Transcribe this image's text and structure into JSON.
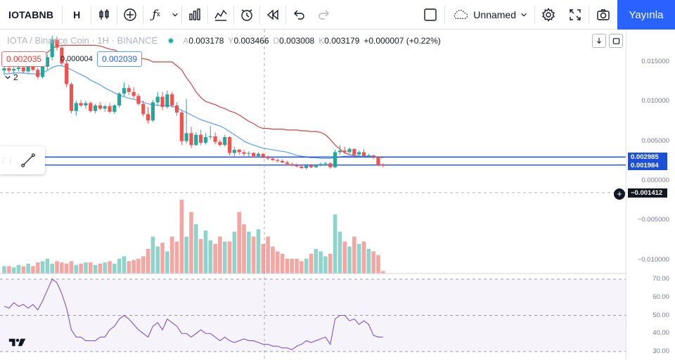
{
  "toolbar": {
    "symbol": "IOTABNB",
    "interval": "H",
    "icons": [
      "candle-chart-icon",
      "add-compare-icon",
      "indicators-icon",
      "chevron-down-icon",
      "templates-icon",
      "line-chart-icon",
      "alert-icon",
      "replay-icon",
      "undo-icon",
      "redo-icon"
    ],
    "layout_name": "Unnamed",
    "publish_label": "Yayınla"
  },
  "legend": {
    "title": "IOTA / Binance Coin · 1H · BINANCE",
    "open_key": "A",
    "open": "0.003178",
    "high_key": "Y",
    "high": "0.003466",
    "low_key": "D",
    "low": "0.003008",
    "close_key": "K",
    "close": "0.003179",
    "change": "+0.000007 (+0.22%)"
  },
  "indicators": {
    "red_value": "0.002035",
    "small_value": "0.000004",
    "blue_value": "0.002039",
    "collapsed_count": "2"
  },
  "price_axis": {
    "ticks": [
      "0.015000",
      "0.010000",
      "0.005000",
      "0.000000",
      "−0.005000",
      "−0.010000"
    ],
    "labels": {
      "blue_upper": "0.002985",
      "blue_lower": "0.001984",
      "crosshair": "−0.001412"
    },
    "rsi_ticks": [
      "70.00",
      "60.00",
      "50.00",
      "40.00",
      "30.00"
    ]
  },
  "colors": {
    "up": "#26a69a",
    "down": "#ef5350",
    "up_vol": "#8fd3cb",
    "down_vol": "#f4a6a3",
    "ma_red": "#c94646",
    "ma_blue": "#5b9cf6",
    "rsi": "#7e57c2",
    "hline": "#1c4fd8"
  },
  "chart_data": {
    "type": "candlestick",
    "title": "IOTA / Binance Coin · 1H · BINANCE",
    "yrange": [
      -0.0125,
      0.018
    ],
    "candles": [
      [
        0.0139,
        0.0147,
        0.0133,
        0.0142
      ],
      [
        0.0142,
        0.0146,
        0.0136,
        0.0139
      ],
      [
        0.0139,
        0.0144,
        0.0134,
        0.0141
      ],
      [
        0.0141,
        0.0147,
        0.0138,
        0.0143
      ],
      [
        0.0143,
        0.0145,
        0.0135,
        0.0138
      ],
      [
        0.0138,
        0.0145,
        0.0136,
        0.0144
      ],
      [
        0.0144,
        0.0148,
        0.0138,
        0.014
      ],
      [
        0.014,
        0.0143,
        0.0128,
        0.0131
      ],
      [
        0.0131,
        0.0147,
        0.0129,
        0.0144
      ],
      [
        0.0144,
        0.016,
        0.014,
        0.0156
      ],
      [
        0.0156,
        0.0183,
        0.0152,
        0.0178
      ],
      [
        0.0178,
        0.0182,
        0.0164,
        0.0168
      ],
      [
        0.0168,
        0.017,
        0.0145,
        0.0148
      ],
      [
        0.0148,
        0.0152,
        0.0118,
        0.0122
      ],
      [
        0.0122,
        0.0124,
        0.0085,
        0.0088
      ],
      [
        0.0088,
        0.0101,
        0.0082,
        0.0098
      ],
      [
        0.0098,
        0.0102,
        0.0093,
        0.0095
      ],
      [
        0.0095,
        0.0101,
        0.0091,
        0.0098
      ],
      [
        0.0098,
        0.01,
        0.0086,
        0.0088
      ],
      [
        0.0088,
        0.0097,
        0.0085,
        0.0095
      ],
      [
        0.0095,
        0.0099,
        0.0089,
        0.0091
      ],
      [
        0.0091,
        0.0096,
        0.0087,
        0.0094
      ],
      [
        0.0094,
        0.0098,
        0.0085,
        0.0087
      ],
      [
        0.0087,
        0.0097,
        0.0084,
        0.0095
      ],
      [
        0.0095,
        0.0112,
        0.0092,
        0.011
      ],
      [
        0.011,
        0.0124,
        0.0106,
        0.0117
      ],
      [
        0.0117,
        0.0121,
        0.0108,
        0.0112
      ],
      [
        0.0112,
        0.0118,
        0.0104,
        0.0107
      ],
      [
        0.0107,
        0.011,
        0.0095,
        0.0097
      ],
      [
        0.0097,
        0.0101,
        0.0081,
        0.0084
      ],
      [
        0.0084,
        0.0093,
        0.0072,
        0.0076
      ],
      [
        0.0076,
        0.0102,
        0.0074,
        0.0099
      ],
      [
        0.0099,
        0.0112,
        0.0095,
        0.0106
      ],
      [
        0.0106,
        0.0112,
        0.0089,
        0.0093
      ],
      [
        0.0093,
        0.0114,
        0.0091,
        0.0109
      ],
      [
        0.0109,
        0.0112,
        0.0092,
        0.0095
      ],
      [
        0.0095,
        0.0099,
        0.0082,
        0.0086
      ],
      [
        0.0086,
        0.0089,
        0.0045,
        0.005
      ],
      [
        0.005,
        0.0103,
        0.0047,
        0.006
      ],
      [
        0.006,
        0.0068,
        0.0041,
        0.0045
      ],
      [
        0.0045,
        0.0061,
        0.0044,
        0.0058
      ],
      [
        0.0058,
        0.0064,
        0.0045,
        0.0048
      ],
      [
        0.0048,
        0.006,
        0.0046,
        0.0055
      ],
      [
        0.0055,
        0.0069,
        0.0052,
        0.0056
      ],
      [
        0.0056,
        0.0061,
        0.0046,
        0.0049
      ],
      [
        0.0049,
        0.0052,
        0.0043,
        0.0045
      ],
      [
        0.0045,
        0.0058,
        0.0043,
        0.0055
      ],
      [
        0.0055,
        0.0056,
        0.0032,
        0.0035
      ],
      [
        0.0035,
        0.0043,
        0.0031,
        0.0039
      ],
      [
        0.0039,
        0.004,
        0.0033,
        0.0036
      ],
      [
        0.0036,
        0.0039,
        0.0031,
        0.0034
      ],
      [
        0.0034,
        0.0037,
        0.003,
        0.0035
      ],
      [
        0.0035,
        0.0036,
        0.0029,
        0.0031
      ],
      [
        0.0031,
        0.0036,
        0.0029,
        0.0034
      ],
      [
        0.0034,
        0.0035,
        0.0028,
        0.003
      ],
      [
        0.003,
        0.0032,
        0.0026,
        0.0028
      ],
      [
        0.0028,
        0.003,
        0.0025,
        0.0026
      ],
      [
        0.0026,
        0.0028,
        0.0023,
        0.0025
      ],
      [
        0.0025,
        0.0027,
        0.0022,
        0.0023
      ],
      [
        0.0023,
        0.0025,
        0.002,
        0.0021
      ],
      [
        0.0021,
        0.0023,
        0.0018,
        0.0019
      ],
      [
        0.0019,
        0.0022,
        0.0017,
        0.0018
      ],
      [
        0.0018,
        0.002,
        0.0015,
        0.0016
      ],
      [
        0.0016,
        0.002,
        0.0014,
        0.0019
      ],
      [
        0.0019,
        0.0021,
        0.0016,
        0.0017
      ],
      [
        0.0017,
        0.0021,
        0.0016,
        0.002
      ],
      [
        0.002,
        0.0023,
        0.0018,
        0.0021
      ],
      [
        0.0021,
        0.0024,
        0.0019,
        0.0022
      ],
      [
        0.0022,
        0.0023,
        0.0015,
        0.0017
      ],
      [
        0.0017,
        0.0039,
        0.0016,
        0.0036
      ],
      [
        0.0036,
        0.0045,
        0.0033,
        0.0038
      ],
      [
        0.0038,
        0.0043,
        0.0034,
        0.0036
      ],
      [
        0.0036,
        0.0042,
        0.0034,
        0.004
      ],
      [
        0.004,
        0.0041,
        0.0031,
        0.0033
      ],
      [
        0.0033,
        0.0038,
        0.0031,
        0.0036
      ],
      [
        0.0036,
        0.004,
        0.003,
        0.0031
      ],
      [
        0.0031,
        0.0034,
        0.0029,
        0.0032
      ],
      [
        0.0032,
        0.0033,
        0.0027,
        0.003
      ],
      [
        0.003,
        0.0031,
        0.0018,
        0.002
      ],
      [
        0.002,
        0.0022,
        0.0017,
        0.0019
      ]
    ],
    "ma_red": [
      0.015,
      0.015,
      0.015,
      0.015,
      0.015,
      0.015,
      0.015,
      0.015,
      0.0158,
      0.0162,
      0.0167,
      0.017,
      0.0171,
      0.0171,
      0.0171,
      0.0171,
      0.0171,
      0.0171,
      0.0171,
      0.0171,
      0.017,
      0.0168,
      0.0166,
      0.0165,
      0.0162,
      0.016,
      0.0158,
      0.0156,
      0.0155,
      0.0154,
      0.0153,
      0.015,
      0.015,
      0.015,
      0.015,
      0.015,
      0.0145,
      0.014,
      0.013,
      0.0122,
      0.0112,
      0.0105,
      0.01,
      0.0098,
      0.0096,
      0.0093,
      0.0091,
      0.0088,
      0.0086,
      0.0083,
      0.0079,
      0.0075,
      0.0072,
      0.0068,
      0.0066,
      0.0066,
      0.0065,
      0.0065,
      0.0065,
      0.0064,
      0.0064,
      0.0064,
      0.0063,
      0.0063,
      0.0062,
      0.0062,
      0.0061,
      0.0058,
      0.0052,
      0.0045,
      0.004,
      0.0035,
      0.0033,
      0.0032,
      0.0031,
      0.0031,
      0.0031,
      0.003,
      0.003,
      0.003
    ],
    "ma_blue": [
      0.0135,
      0.0135,
      0.0136,
      0.0136,
      0.0136,
      0.0135,
      0.0135,
      0.0134,
      0.0136,
      0.0139,
      0.0143,
      0.0145,
      0.0145,
      0.0143,
      0.014,
      0.0137,
      0.0134,
      0.0131,
      0.0127,
      0.0124,
      0.0121,
      0.0117,
      0.0114,
      0.0111,
      0.0108,
      0.0106,
      0.0104,
      0.0103,
      0.0101,
      0.0099,
      0.0097,
      0.0096,
      0.0095,
      0.0095,
      0.0095,
      0.0094,
      0.0092,
      0.0089,
      0.0086,
      0.0083,
      0.008,
      0.0077,
      0.0075,
      0.0073,
      0.0071,
      0.0069,
      0.0066,
      0.0062,
      0.0058,
      0.0054,
      0.005,
      0.0047,
      0.0045,
      0.0043,
      0.0041,
      0.004,
      0.0039,
      0.0038,
      0.0037,
      0.0036,
      0.0034,
      0.0032,
      0.0031,
      0.003,
      0.0029,
      0.0029,
      0.0028,
      0.0028,
      0.0028,
      0.0029,
      0.003,
      0.0031,
      0.0031,
      0.0031,
      0.0031,
      0.0031,
      0.0031,
      0.003,
      0.003,
      0.0029
    ],
    "volumes": [
      6,
      6,
      5,
      7,
      6,
      8,
      6,
      9,
      10,
      12,
      8,
      10,
      9,
      8,
      10,
      7,
      8,
      9,
      9,
      7,
      8,
      9,
      10,
      8,
      12,
      14,
      10,
      11,
      12,
      14,
      20,
      30,
      22,
      25,
      18,
      30,
      26,
      60,
      30,
      50,
      40,
      28,
      35,
      27,
      24,
      30,
      26,
      26,
      34,
      50,
      40,
      34,
      30,
      36,
      24,
      30,
      22,
      18,
      16,
      12,
      12,
      12,
      10,
      12,
      16,
      20,
      18,
      14,
      16,
      48,
      34,
      26,
      22,
      30,
      24,
      26,
      20,
      18,
      15,
      2
    ],
    "rsi": [
      55,
      54,
      57,
      55,
      56,
      54,
      56,
      53,
      58,
      64,
      70,
      68,
      62,
      54,
      42,
      38,
      38,
      36,
      36,
      36,
      38,
      38,
      42,
      44,
      48,
      50,
      48,
      45,
      42,
      40,
      38,
      44,
      46,
      42,
      48,
      46,
      44,
      40,
      40,
      38,
      40,
      42,
      40,
      40,
      38,
      36,
      38,
      36,
      35,
      36,
      37,
      36,
      36,
      35,
      34,
      34,
      33,
      33,
      32,
      32,
      31,
      33,
      34,
      36,
      35,
      36,
      37,
      38,
      34,
      48,
      50,
      50,
      47,
      48,
      45,
      47,
      45,
      39,
      38,
      38
    ],
    "horizontal_lines": [
      0.002985,
      0.001984
    ]
  }
}
